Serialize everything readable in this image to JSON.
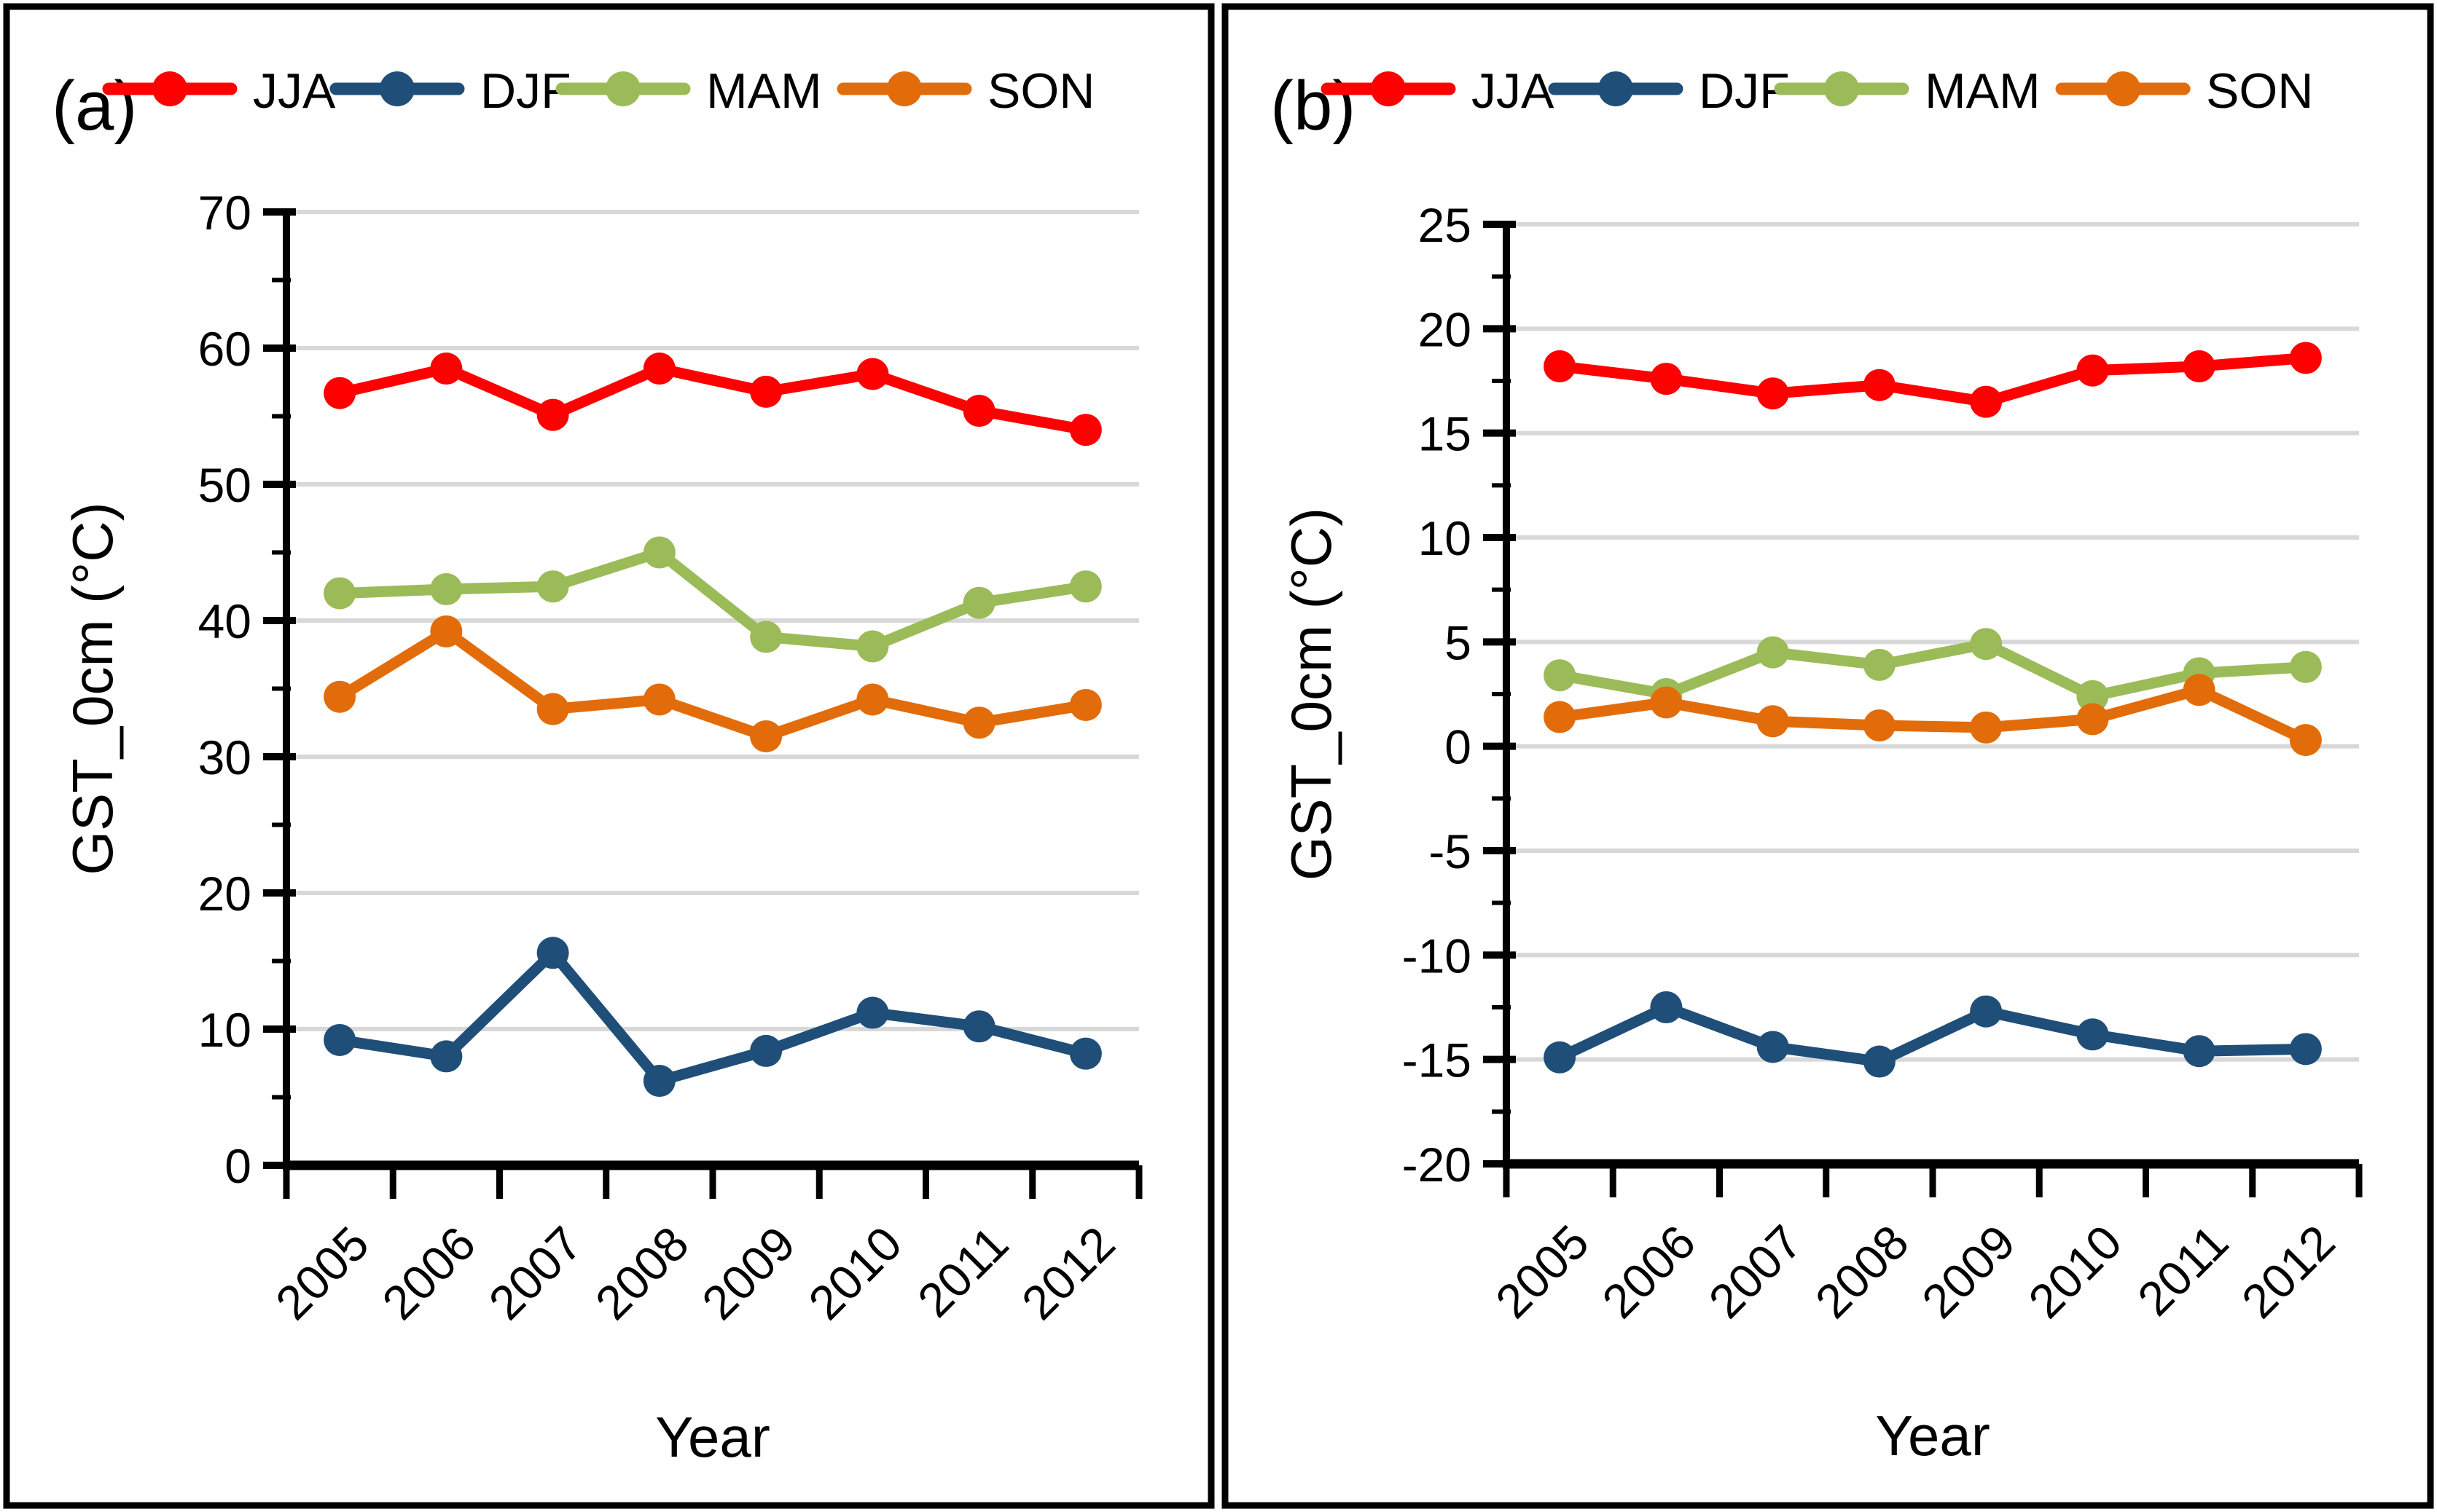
{
  "figure": {
    "description": "Two-panel seasonal line chart of ground surface temperature (GST at 0 cm) versus year",
    "background": "#FFFFFF",
    "border_color": "#000000",
    "grid_color": "#D8D8D8",
    "axis_color": "#000000"
  },
  "chart_data": [
    {
      "type": "line",
      "panel_label": "(a)",
      "title": "",
      "xlabel": "Year",
      "ylabel": "GST_0cm (°C)",
      "legend_position": "top",
      "grid": true,
      "categories": [
        "2005",
        "2006",
        "2007",
        "2008",
        "2009",
        "2010",
        "2011",
        "2012"
      ],
      "ylim": [
        0,
        70
      ],
      "y_ticks": [
        0,
        10,
        20,
        30,
        40,
        50,
        60,
        70
      ],
      "y_minor_step": 5,
      "series": [
        {
          "name": "JJA",
          "color": "#FE0000",
          "values": [
            56.7,
            58.5,
            55.1,
            58.5,
            56.8,
            58.1,
            55.4,
            54.0
          ]
        },
        {
          "name": "DJF",
          "color": "#1F4E79",
          "values": [
            9.2,
            8.0,
            15.6,
            6.2,
            8.4,
            11.2,
            10.2,
            8.2
          ]
        },
        {
          "name": "MAM",
          "color": "#9BBB59",
          "values": [
            42.0,
            42.3,
            42.5,
            45.0,
            38.8,
            38.1,
            41.3,
            42.5
          ]
        },
        {
          "name": "SON",
          "color": "#E36C0A",
          "values": [
            34.4,
            39.2,
            33.5,
            34.2,
            31.5,
            34.2,
            32.5,
            33.8
          ]
        }
      ]
    },
    {
      "type": "line",
      "panel_label": "(b)",
      "title": "",
      "xlabel": "Year",
      "ylabel": "GST_0cm (°C)",
      "legend_position": "top",
      "grid": true,
      "categories": [
        "2005",
        "2006",
        "2007",
        "2008",
        "2009",
        "2010",
        "2011",
        "2012"
      ],
      "ylim": [
        -20,
        25
      ],
      "y_ticks": [
        -20,
        -15,
        -10,
        -5,
        0,
        5,
        10,
        15,
        20,
        25
      ],
      "y_minor_step": 2.5,
      "series": [
        {
          "name": "JJA",
          "color": "#FE0000",
          "values": [
            18.2,
            17.6,
            16.9,
            17.3,
            16.5,
            18.0,
            18.2,
            18.6
          ]
        },
        {
          "name": "DJF",
          "color": "#1F4E79",
          "values": [
            -14.9,
            -12.5,
            -14.4,
            -15.1,
            -12.7,
            -13.8,
            -14.6,
            -14.5
          ]
        },
        {
          "name": "MAM",
          "color": "#9BBB59",
          "values": [
            3.4,
            2.5,
            4.5,
            3.9,
            4.9,
            2.4,
            3.5,
            3.8
          ]
        },
        {
          "name": "SON",
          "color": "#E36C0A",
          "values": [
            1.4,
            2.1,
            1.2,
            1.0,
            0.9,
            1.3,
            2.7,
            0.3
          ]
        }
      ]
    }
  ]
}
